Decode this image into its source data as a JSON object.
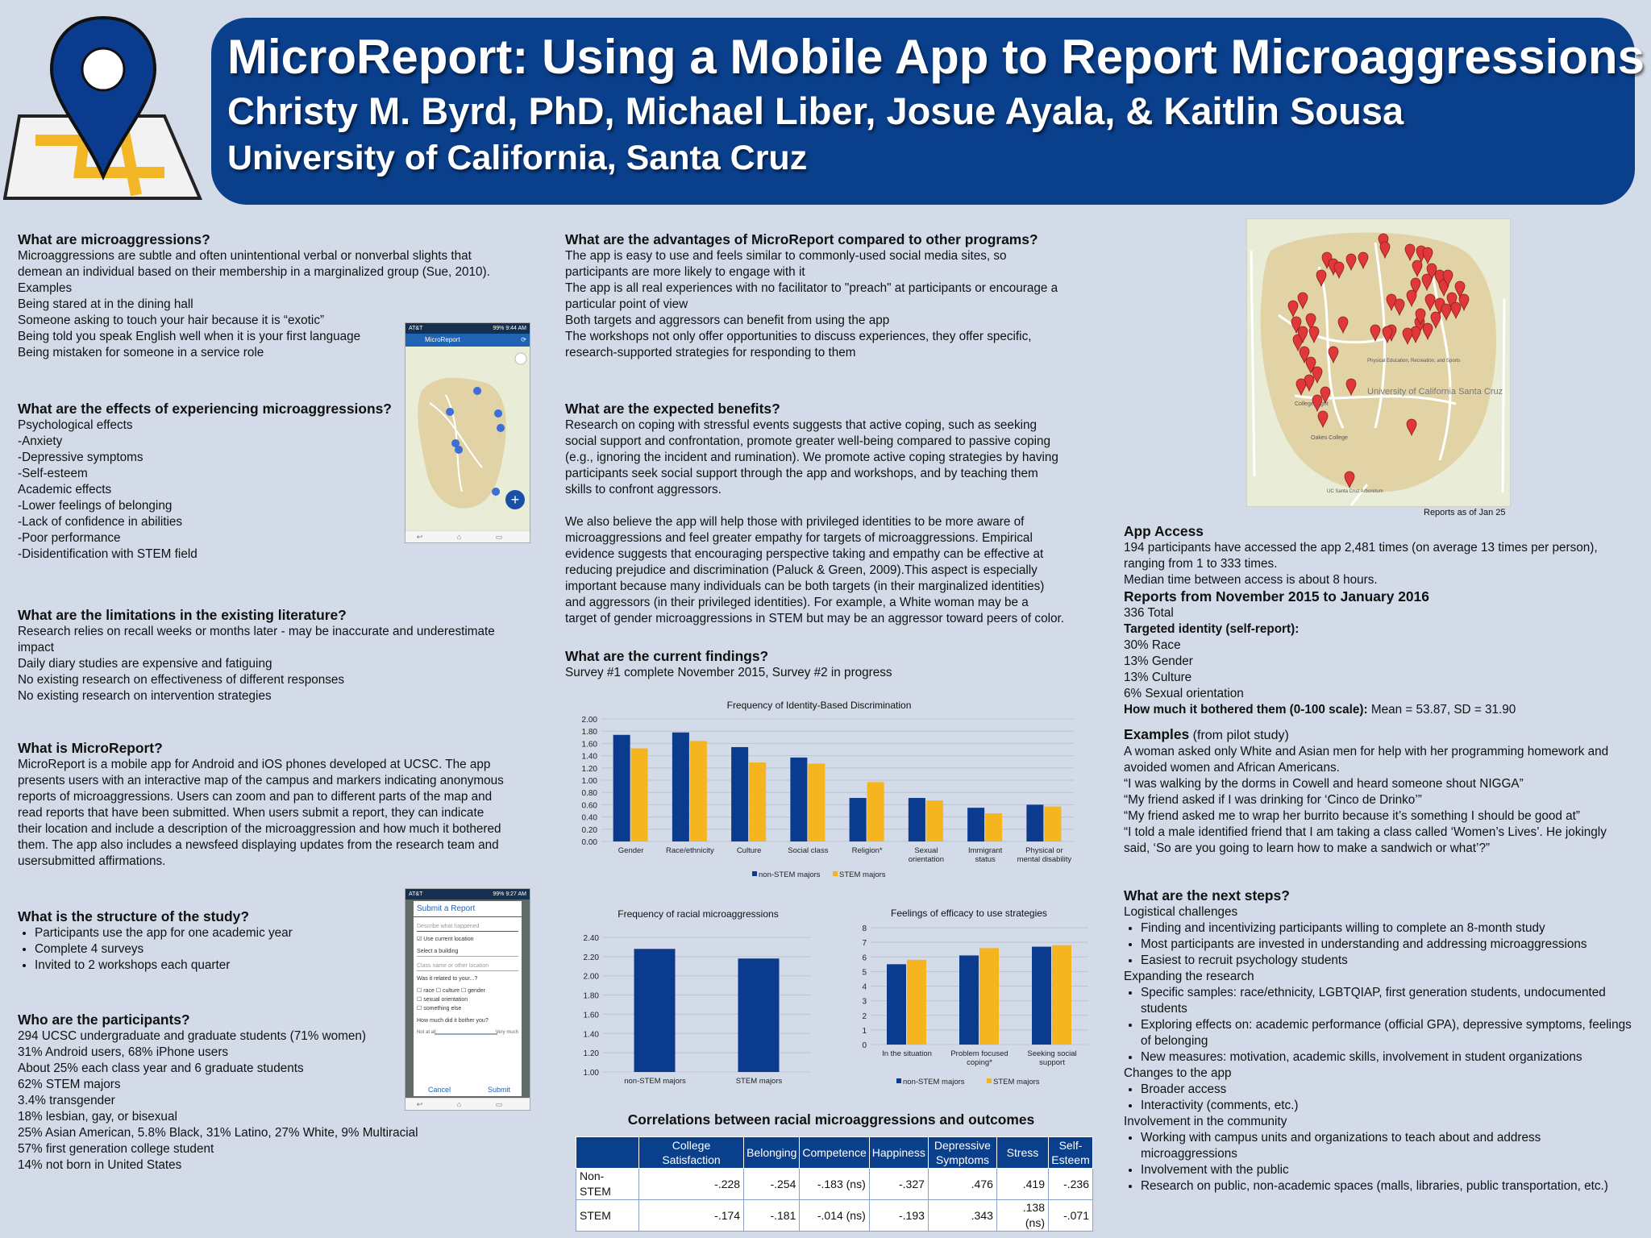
{
  "header": {
    "title": "MicroReport: Using a Mobile App to Report Microaggressions",
    "authors": "Christy M. Byrd, PhD, Michael Liber, Josue Ayala, & Kaitlin Sousa",
    "institution": "University of California, Santa Cruz"
  },
  "colors": {
    "banner": "#0a3f8c",
    "navy": "#0b3b8f",
    "gold": "#f4b51f",
    "pin": "#e03838",
    "background": "#d3dbe9"
  },
  "col1": {
    "s1": {
      "heading": "What are microaggressions?",
      "lines": [
        "Microaggressions are subtle and often unintentional verbal or nonverbal slights that",
        "demean an individual based on their membership in a marginalized group (Sue, 2010).",
        "Examples",
        "Being stared at in the dining hall",
        "Someone asking to touch your hair because it is “exotic”",
        "Being told you speak English well when it is your first language",
        "Being mistaken for someone in a service role"
      ]
    },
    "s2": {
      "heading": "What are the effects of experiencing microaggressions?",
      "lines": [
        "Psychological effects",
        "-Anxiety",
        "-Depressive symptoms",
        "-Self-esteem",
        "Academic effects",
        "-Lower feelings of belonging",
        "-Lack of confidence in abilities",
        "-Poor performance",
        "-Disidentification with STEM field"
      ]
    },
    "s3": {
      "heading": "What are the limitations in the existing literature?",
      "lines": [
        "Research relies on recall weeks or months later - may be inaccurate and underestimate",
        "impact",
        "Daily diary studies are expensive and fatiguing",
        "No existing research on effectiveness of different responses",
        "No existing research on intervention strategies"
      ]
    },
    "s4": {
      "heading": "What is MicroReport?",
      "lines": [
        "MicroReport is a mobile app for Android and iOS phones developed at UCSC. The app",
        "presents users with an interactive map of the campus and markers indicating anonymous",
        "reports of microaggressions. Users can zoom and pan to different parts of the map and",
        "read reports that have been submitted. When users submit a report, they can indicate",
        "their location and include a description of the microaggression and how much it bothered",
        "them. The app also includes a newsfeed displaying updates from the research team and",
        "usersubmitted affirmations."
      ]
    },
    "s5": {
      "heading": "What is the structure of the study?",
      "bullets": [
        "Participants use the app for one academic year",
        "Complete 4 surveys",
        "Invited to 2 workshops each quarter"
      ]
    },
    "s6": {
      "heading": "Who are the participants?",
      "lines": [
        "294 UCSC undergraduate and graduate students (71% women)",
        "31% Android users, 68% iPhone users",
        "About 25% each class year and 6 graduate students",
        "62% STEM majors",
        "3.4% transgender",
        "18% lesbian, gay, or bisexual",
        "25% Asian American, 5.8% Black, 31% Latino, 27% White, 9% Multiracial",
        "57% first generation college student",
        "14% not born in United States"
      ]
    }
  },
  "phone1": {
    "status_left": "AT&T",
    "status_right": "99% 9:44 AM",
    "app_title": "MicroReport"
  },
  "phone2": {
    "status_left": "AT&T",
    "status_right": "99% 9:27 AM",
    "title": "Submit a Report",
    "describe": "Describe what happened",
    "use_location": "Use current location",
    "select_building": "Select a building",
    "class_name": "Class name or other location",
    "related": "Was it related to your...?",
    "opt_race": "race",
    "opt_culture": "culture",
    "opt_gender": "gender",
    "opt_sexual": "sexual orientation",
    "opt_else": "something else",
    "bother": "How much did it bother you?",
    "scale_low": "Not at all",
    "scale_high": "Very much",
    "cancel": "Cancel",
    "submit": "Submit"
  },
  "col2": {
    "s1": {
      "heading": "What are the advantages of MicroReport compared to other programs?",
      "lines": [
        "The app is easy to use and feels similar to commonly-used social media sites, so",
        "participants are more likely to engage with it",
        "The app is all real experiences with no facilitator to \"preach\" at participants or encourage a",
        "particular point of view",
        "Both targets and aggressors can benefit from using the app",
        "The workshops not only offer opportunities to discuss experiences, they offer specific,",
        "research-supported strategies for responding to them"
      ]
    },
    "s2": {
      "heading": "What are the expected benefits?",
      "p1": [
        "Research on coping with stressful events suggests that active coping, such as seeking",
        "social support and confrontation, promote greater well-being compared to passive coping",
        "(e.g., ignoring the incident and rumination). We promote active coping strategies by having",
        "participants seek social support through the app and workshops, and by teaching them",
        "skills to confront aggressors."
      ],
      "p2": [
        "We also believe the app will help those with privileged identities to be more aware of",
        "microaggressions and feel greater empathy for targets of microaggressions. Empirical",
        "evidence suggests that encouraging perspective taking and empathy can be effective at",
        "reducing prejudice and discrimination (Paluck & Green, 2009).This aspect is especially",
        "important because many individuals can be both targets (in their marginalized identities)",
        "and aggressors (in their privileged identities). For example, a White woman may be a",
        "target of gender microaggressions in STEM but may be an aggressor toward peers of color."
      ]
    },
    "s3": {
      "heading": "What are the current findings?",
      "line": "Survey #1 complete November 2015, Survey #2 in progress"
    }
  },
  "chart_data": [
    {
      "type": "bar",
      "title": "Frequency of Identity-Based Discrimination",
      "categories": [
        "Gender",
        "Race/ethnicity",
        "Culture",
        "Social class",
        "Religion*",
        "Sexual orientation",
        "Immigrant status",
        "Physical or mental disability"
      ],
      "series": [
        {
          "name": "non-STEM majors",
          "values": [
            1.74,
            1.78,
            1.54,
            1.37,
            0.71,
            0.71,
            0.55,
            0.6
          ]
        },
        {
          "name": "STEM majors",
          "values": [
            1.52,
            1.64,
            1.29,
            1.27,
            0.97,
            0.67,
            0.46,
            0.57
          ]
        }
      ],
      "ylim": [
        0,
        2.0
      ],
      "yticks": [
        "0.00",
        "0.20",
        "0.40",
        "0.60",
        "0.80",
        "1.00",
        "1.20",
        "1.40",
        "1.60",
        "1.80",
        "2.00"
      ],
      "legend": "bottom"
    },
    {
      "type": "bar",
      "title": "Frequency of racial microaggressions",
      "categories": [
        "non-STEM majors",
        "STEM majors"
      ],
      "series": [
        {
          "name": "",
          "values": [
            2.28,
            2.18
          ]
        }
      ],
      "ylim": [
        1.0,
        2.4
      ],
      "yticks": [
        "1.00",
        "1.20",
        "1.40",
        "1.60",
        "1.80",
        "2.00",
        "2.20",
        "2.40"
      ]
    },
    {
      "type": "bar",
      "title": "Feelings of efficacy to use strategies",
      "categories": [
        "In the situation",
        "Problem focused coping*",
        "Seeking social support"
      ],
      "series": [
        {
          "name": "non-STEM majors",
          "values": [
            5.5,
            6.1,
            6.7
          ]
        },
        {
          "name": "STEM majors",
          "values": [
            5.8,
            6.6,
            6.8
          ]
        }
      ],
      "ylim": [
        0,
        8
      ],
      "yticks": [
        "0",
        "1",
        "2",
        "3",
        "4",
        "5",
        "6",
        "7",
        "8"
      ],
      "legend": "bottom"
    }
  ],
  "correlations": {
    "title": "Correlations between racial microaggressions and outcomes",
    "columns": [
      "",
      "College Satisfaction",
      "Belonging",
      "Competence",
      "Happiness",
      "Depressive Symptoms",
      "Stress",
      "Self-Esteem"
    ],
    "rows": [
      [
        "Non-STEM",
        "-.228",
        "-.254",
        "-.183 (ns)",
        "-.327",
        ".476",
        ".419",
        "-.236"
      ],
      [
        "STEM",
        "-.174",
        "-.181",
        "-.014 (ns)",
        "-.193",
        ".343",
        ".138 (ns)",
        "-.071"
      ]
    ]
  },
  "col3": {
    "map_caption": "Reports as of Jan 25",
    "map_labels": [
      "University of California Santa Cruz",
      "College Eight",
      "Oakes College",
      "Physical Education, Recreation, and Sports",
      "UC Santa Cruz Arboretum"
    ],
    "access": {
      "heading": "App Access",
      "lines": [
        "194 participants have accessed the app 2,481 times (on average 13 times per person),",
        "ranging from 1 to 333 times.",
        "Median time between access is about 8 hours."
      ]
    },
    "reports": {
      "heading": "Reports from November 2015 to January 2016",
      "total": "336 Total",
      "targeted_label": "Targeted identity (self-report):",
      "items": [
        "30% Race",
        "13% Gender",
        "13% Culture",
        "6% Sexual orientation"
      ],
      "bother_label": "How much it bothered them (0-100 scale):",
      "bother_value": " Mean = 53.87, SD = 31.90"
    },
    "examples": {
      "heading": "Examples",
      "sub": " (from pilot study)",
      "lines": [
        "A woman asked only White and Asian men for help with her programming homework and",
        "avoided women and African Americans.",
        "“I was walking by the dorms in Cowell and heard someone shout NIGGA”",
        "“My friend asked if I was drinking for ‘Cinco de Drinko’”",
        "“My friend asked me to wrap her burrito because it’s something I should be good at”",
        "“I told a male identified friend that I am taking a class called ‘Women’s Lives’.  He jokingly",
        "said, ‘So are you going to learn how to make a sandwich or what’?”"
      ]
    },
    "next": {
      "heading": "What are the next steps?",
      "log": "Logistical challenges",
      "log_items": [
        "Finding and incentivizing participants willing to complete an 8-month study",
        "Most participants are invested in understanding and addressing microaggressions",
        "Easiest to recruit psychology students"
      ],
      "exp": "Expanding the research",
      "exp_items": [
        "Specific samples: race/ethnicity, LGBTQIAP, first generation students, undocumented students",
        "Exploring effects on: academic performance (official GPA), depressive symptoms, feelings of belonging",
        "New measures: motivation, academic skills, involvement in student organizations"
      ],
      "chg": "Changes to the app",
      "chg_items": [
        "Broader access",
        "Interactivity (comments, etc.)"
      ],
      "inv": "Involvement in the community",
      "inv_items": [
        "Working with campus units and organizations to teach about and address microaggressions",
        "Involvement with the public",
        "Research on public, non-academic spaces (malls, libraries, public transportation, etc.)"
      ]
    }
  }
}
